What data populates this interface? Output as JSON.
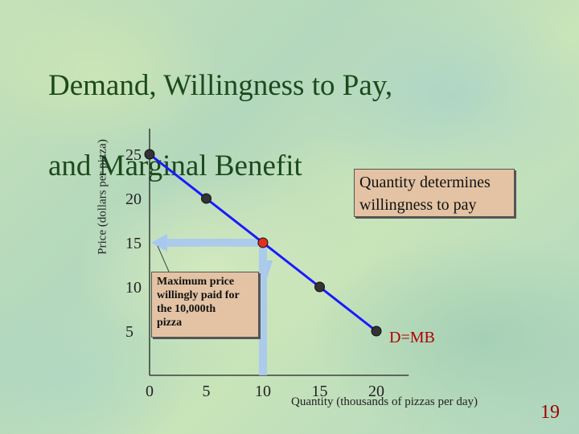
{
  "title": {
    "line1": "Demand, Willingness to Pay,",
    "line2": "and Marginal Benefit"
  },
  "page_number": "19",
  "callouts": {
    "quantity_line1": "Quantity determines",
    "quantity_line2": "willingness to pay",
    "max_line1": "Maximum price",
    "max_line2": "willingly paid for",
    "max_line3": "the 10,000th",
    "max_line4": " pizza"
  },
  "colors": {
    "demand_line": "#1a1aff",
    "points": "#333333",
    "highlight_point": "#e03020",
    "arrow": "#a8c8f0",
    "callout_fill": "#e3c3a4",
    "title": "#1c4a1c",
    "page_number": "#a00000"
  },
  "chart_data": {
    "type": "line",
    "xlabel": "Quantity (thousands of pizzas per day)",
    "ylabel": "Price (dollars per pizza)",
    "xlim": [
      0,
      22
    ],
    "ylim": [
      0,
      27
    ],
    "x_ticks": [
      "0",
      "5",
      "10",
      "15",
      "20"
    ],
    "y_ticks": [
      "25",
      "20",
      "15",
      "10",
      "5"
    ],
    "series": [
      {
        "name": "D=MB",
        "x": [
          0,
          5,
          10,
          15,
          20
        ],
        "y": [
          25,
          20,
          15,
          10,
          5
        ]
      }
    ],
    "highlight": {
      "x": 10,
      "y": 15
    },
    "grid": false
  }
}
